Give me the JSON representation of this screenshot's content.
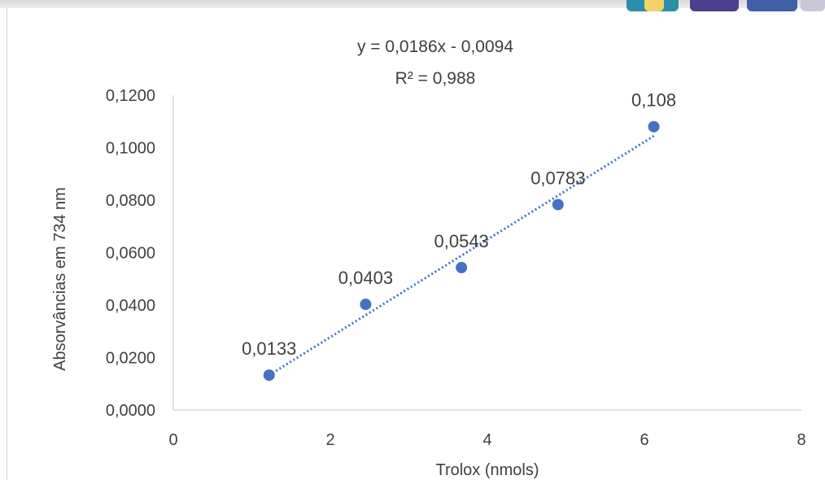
{
  "chart_data": {
    "type": "scatter",
    "xlabel": "Trolox (nmols)",
    "ylabel": "Absorvâncias em 734 nm",
    "xlim": [
      0,
      8
    ],
    "ylim": [
      0,
      0.12
    ],
    "xticks": [
      "0",
      "2",
      "4",
      "6",
      "8"
    ],
    "yticks": [
      "0,0000",
      "0,0200",
      "0,0400",
      "0,0600",
      "0,0800",
      "0,1000",
      "0,1200"
    ],
    "points": [
      {
        "x": 1.22,
        "y": 0.0133,
        "label": "0,0133"
      },
      {
        "x": 2.45,
        "y": 0.0403,
        "label": "0,0403"
      },
      {
        "x": 3.67,
        "y": 0.0543,
        "label": "0,0543"
      },
      {
        "x": 4.9,
        "y": 0.0783,
        "label": "0,0783"
      },
      {
        "x": 6.12,
        "y": 0.108,
        "label": "0,108"
      }
    ],
    "trendline": {
      "type": "linear",
      "slope": 0.0186,
      "intercept": -0.0094,
      "equation": "y = 0,0186x - 0,0094",
      "r_squared": "R² = 0,988",
      "style": "dotted"
    },
    "grid": false,
    "legend": "none",
    "colors": {
      "marker": "#4472c4",
      "trendline": "#4472c4",
      "axis": "#d9d9d9",
      "text": "#404040"
    }
  }
}
